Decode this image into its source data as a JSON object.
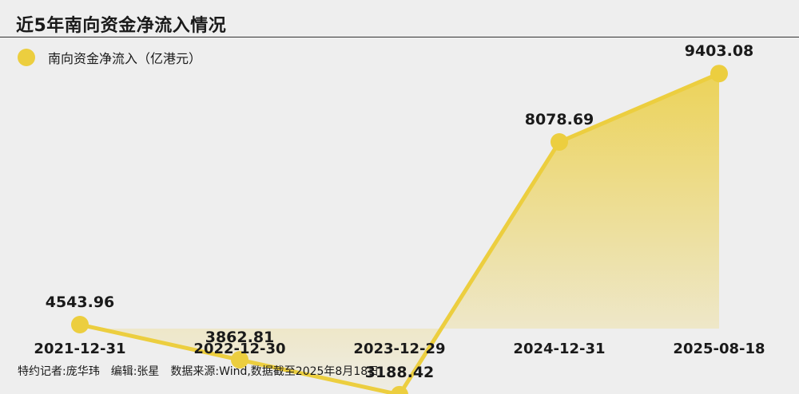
{
  "header": {
    "title": "近5年南向资金净流入情况"
  },
  "legend": {
    "label": "南向资金净流入（亿港元）"
  },
  "footer": {
    "reporter": "特约记者:庞华玮",
    "editor": "编辑:张星",
    "source": "数据来源:Wind,数据截至2025年8月18日"
  },
  "colors": {
    "line": "#ecce3f",
    "area_top": "#ecce3f",
    "background": "#eeeeee"
  },
  "chart_data": {
    "type": "area",
    "categories": [
      "2021-12-31",
      "2022-12-30",
      "2023-12-29",
      "2024-12-31",
      "2025-08-18"
    ],
    "series": [
      {
        "name": "南向资金净流入（亿港元）",
        "values": [
          4543.96,
          3862.81,
          3188.42,
          8078.69,
          9403.08
        ]
      }
    ],
    "value_labels": [
      "4543.96",
      "3862.81",
      "3188.42",
      "8078.69",
      "9403.08"
    ],
    "title": "近5年南向资金净流入情况",
    "xlabel": "",
    "ylabel": "",
    "ylim": [
      2800,
      9900
    ],
    "grid": false,
    "legend_position": "top-left"
  }
}
